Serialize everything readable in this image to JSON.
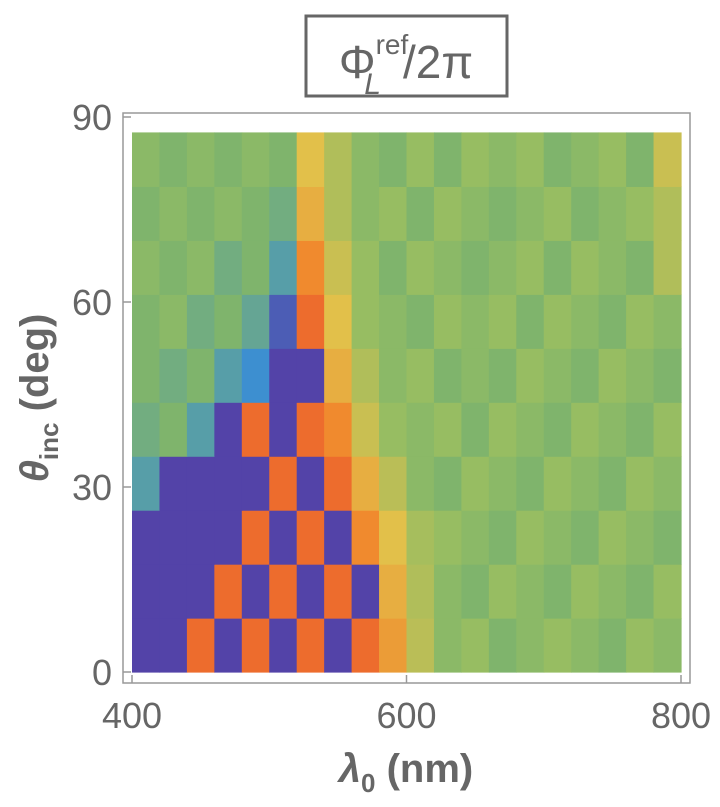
{
  "chart_data": {
    "type": "heatmap",
    "title": {
      "base": "Φ",
      "sup": "ref",
      "sub": "L",
      "rest": "/2π"
    },
    "x_label": {
      "base": "λ",
      "sub": "0",
      "rest": " (nm)"
    },
    "y_label": {
      "base": "θ",
      "sub": "inc",
      "rest": " (deg)"
    },
    "xlim": [
      400,
      800
    ],
    "ylim": [
      0,
      90
    ],
    "xticks": [
      400,
      600,
      800
    ],
    "yticks": [
      0,
      30,
      60,
      90
    ],
    "xbins": [
      400,
      420,
      440,
      460,
      480,
      500,
      520,
      540,
      560,
      580,
      600,
      620,
      640,
      660,
      680,
      700,
      720,
      740,
      760,
      780,
      800
    ],
    "ybins": [
      0,
      8.75,
      17.5,
      26.25,
      35,
      43.75,
      52.5,
      61.25,
      70,
      78.75,
      87.5
    ],
    "colorscale": [
      [
        0,
        "#5a2a9a"
      ],
      [
        0.2,
        "#3d8fd0"
      ],
      [
        0.45,
        "#7fb46c"
      ],
      [
        0.55,
        "#97bd62"
      ],
      [
        0.7,
        "#e2c04a"
      ],
      [
        0.85,
        "#f08a2e"
      ],
      [
        1,
        "#e8302a"
      ]
    ],
    "z": [
      [
        0.05,
        0.05,
        0.9,
        0.05,
        0.9,
        0.05,
        0.9,
        0.05,
        0.9,
        0.8,
        0.62,
        0.5,
        0.55,
        0.45,
        0.5,
        0.55,
        0.5,
        0.45,
        0.55,
        0.5
      ],
      [
        0.05,
        0.05,
        0.05,
        0.9,
        0.05,
        0.9,
        0.05,
        0.9,
        0.05,
        0.75,
        0.6,
        0.5,
        0.45,
        0.55,
        0.5,
        0.45,
        0.55,
        0.5,
        0.45,
        0.55
      ],
      [
        0.05,
        0.05,
        0.05,
        0.05,
        0.9,
        0.05,
        0.9,
        0.05,
        0.85,
        0.7,
        0.58,
        0.55,
        0.5,
        0.45,
        0.55,
        0.5,
        0.45,
        0.55,
        0.5,
        0.45
      ],
      [
        0.3,
        0.05,
        0.05,
        0.05,
        0.05,
        0.9,
        0.05,
        0.9,
        0.75,
        0.62,
        0.5,
        0.45,
        0.55,
        0.5,
        0.45,
        0.55,
        0.5,
        0.45,
        0.55,
        0.5
      ],
      [
        0.4,
        0.45,
        0.3,
        0.05,
        0.9,
        0.05,
        0.9,
        0.85,
        0.65,
        0.55,
        0.5,
        0.55,
        0.45,
        0.55,
        0.5,
        0.45,
        0.55,
        0.5,
        0.45,
        0.55
      ],
      [
        0.45,
        0.4,
        0.45,
        0.3,
        0.2,
        0.05,
        0.05,
        0.75,
        0.6,
        0.5,
        0.55,
        0.45,
        0.5,
        0.45,
        0.55,
        0.5,
        0.45,
        0.55,
        0.5,
        0.45
      ],
      [
        0.45,
        0.5,
        0.4,
        0.45,
        0.35,
        0.1,
        0.9,
        0.7,
        0.55,
        0.5,
        0.45,
        0.55,
        0.5,
        0.55,
        0.45,
        0.55,
        0.5,
        0.45,
        0.55,
        0.5
      ],
      [
        0.5,
        0.45,
        0.5,
        0.4,
        0.45,
        0.3,
        0.85,
        0.65,
        0.55,
        0.45,
        0.55,
        0.5,
        0.45,
        0.5,
        0.55,
        0.45,
        0.55,
        0.5,
        0.45,
        0.6
      ],
      [
        0.45,
        0.5,
        0.45,
        0.5,
        0.45,
        0.4,
        0.75,
        0.6,
        0.5,
        0.55,
        0.45,
        0.55,
        0.5,
        0.45,
        0.5,
        0.55,
        0.45,
        0.5,
        0.55,
        0.6
      ],
      [
        0.5,
        0.45,
        0.5,
        0.45,
        0.5,
        0.45,
        0.7,
        0.6,
        0.5,
        0.45,
        0.55,
        0.45,
        0.55,
        0.5,
        0.55,
        0.45,
        0.5,
        0.55,
        0.45,
        0.65
      ]
    ]
  }
}
